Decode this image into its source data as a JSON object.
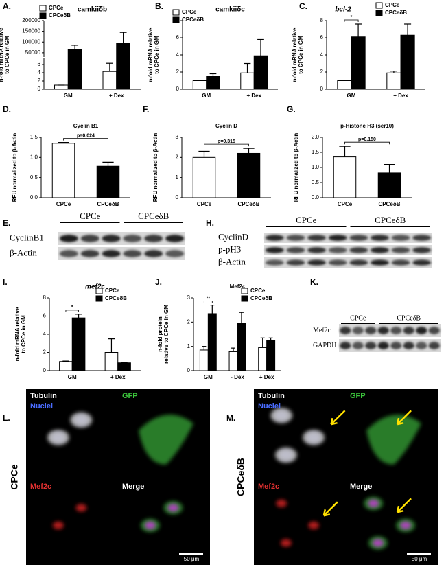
{
  "panel_labels": [
    "A.",
    "B.",
    "C.",
    "D.",
    "F.",
    "G.",
    "E.",
    "H.",
    "I.",
    "J.",
    "K.",
    "L.",
    "M."
  ],
  "chart_data": [
    {
      "type": "bar",
      "title": "camkiiδb",
      "ylabel": [
        "n-fold mRNA relative",
        "to CPCe in GM"
      ],
      "categories": [
        "GM",
        "+ Dex"
      ],
      "legend": "upper left",
      "series": [
        {
          "name": "CPCe",
          "color": "#ffffff",
          "values": [
            1,
            4.3
          ],
          "errors": [
            0,
            2
          ]
        },
        {
          "name": "CPCeδB",
          "color": "#000000",
          "values": [
            65000,
            95000
          ],
          "errors": [
            20000,
            50000
          ]
        }
      ],
      "ylim": [
        0,
        200000
      ],
      "ybreak": [
        7,
        40000
      ],
      "yticks": [
        0,
        2,
        4,
        6,
        50000,
        100000,
        150000,
        200000
      ]
    },
    {
      "type": "bar",
      "title": "camkiiδc",
      "ylabel": [
        "n-fold mRNA relative",
        "to CPCe in GM"
      ],
      "categories": [
        "GM",
        "+ Dex"
      ],
      "legend": "upper left",
      "series": [
        {
          "name": "CPCe",
          "color": "#ffffff",
          "values": [
            1,
            1.9
          ],
          "errors": [
            0.05,
            1.1
          ]
        },
        {
          "name": "CPCeδB",
          "color": "#000000",
          "values": [
            1.5,
            3.9
          ],
          "errors": [
            0.3,
            1.9
          ]
        }
      ],
      "ylim": [
        0,
        8
      ],
      "yticks": [
        0,
        2,
        4,
        6,
        8
      ]
    },
    {
      "type": "bar",
      "title": "bcl-2",
      "ylabel": [
        "n-fold mRNA relative",
        "to CPCe in GM"
      ],
      "categories": [
        "GM",
        "+ Dex"
      ],
      "legend": "upper right",
      "significance": "*",
      "series": [
        {
          "name": "CPCe",
          "color": "#ffffff",
          "values": [
            1,
            1.9
          ],
          "errors": [
            0.05,
            0.2
          ]
        },
        {
          "name": "CPCeδB",
          "color": "#000000",
          "values": [
            6.1,
            6.3
          ],
          "errors": [
            1.5,
            1.3
          ]
        }
      ],
      "ylim": [
        0,
        8
      ],
      "yticks": [
        0,
        2,
        4,
        6,
        8
      ]
    },
    {
      "type": "bar",
      "title": "Cyclin B1",
      "ylabel": [
        "RFU normalized to β-Actin"
      ],
      "categories": [
        "CPCe",
        "CPCeδB"
      ],
      "colors": [
        "#ffffff",
        "#000000"
      ],
      "pvalue": "p=0.024",
      "values": [
        1.35,
        0.78
      ],
      "errors": [
        0.02,
        0.1
      ],
      "ylim": [
        0,
        1.5
      ],
      "yticks": [
        {
          "value": 0,
          "label": "0.0"
        },
        0.5,
        {
          "value": 1,
          "label": "1.0"
        },
        1.5
      ]
    },
    {
      "type": "bar",
      "title": "Cyclin D",
      "ylabel": [
        "RFU normalized to β-Actin"
      ],
      "categories": [
        "CPCe",
        "CPCeδB"
      ],
      "colors": [
        "#ffffff",
        "#000000"
      ],
      "pvalue": "p=0.315",
      "values": [
        2.0,
        2.2
      ],
      "errors": [
        0.3,
        0.25
      ],
      "ylim": [
        0,
        3
      ],
      "yticks": [
        0,
        1,
        2,
        3
      ]
    },
    {
      "type": "bar",
      "title": "p-Histone H3 (ser10)",
      "ylabel": [
        "RFU normalized to β-Actin"
      ],
      "categories": [
        "CPCe",
        "CPCeδB"
      ],
      "colors": [
        "#ffffff",
        "#000000"
      ],
      "pvalue": "p=0.150",
      "values": [
        1.35,
        0.82
      ],
      "errors": [
        0.35,
        0.28
      ],
      "ylim": [
        0,
        2
      ],
      "yticks": [
        {
          "value": 0,
          "label": "0.0"
        },
        0.5,
        {
          "value": 1,
          "label": "1.0"
        },
        1.5,
        {
          "value": 2,
          "label": "2.0"
        }
      ]
    },
    {
      "type": "bar",
      "title": "mef2c",
      "ylabel": [
        "n-fold mRNA relative",
        "to CPCe in GM"
      ],
      "categories": [
        "GM",
        "+ Dex"
      ],
      "legend": "upper right",
      "significance": "*",
      "series": [
        {
          "name": "CPCe",
          "color": "#ffffff",
          "values": [
            1,
            2.0
          ],
          "errors": [
            0.05,
            1.5
          ]
        },
        {
          "name": "CPCeδB",
          "color": "#000000",
          "values": [
            5.8,
            0.85
          ],
          "errors": [
            0.4,
            0.05
          ]
        }
      ],
      "ylim": [
        0,
        8
      ],
      "yticks": [
        0,
        2,
        4,
        6,
        8
      ]
    },
    {
      "type": "bar",
      "title": "Mef2c",
      "ylabel": [
        "n-fold protein",
        "relative to CPCe in GM"
      ],
      "categories": [
        "GM",
        "- Dex",
        "+ Dex"
      ],
      "legend": "upper right",
      "significance": "**",
      "series": [
        {
          "name": "CPCe",
          "color": "#ffffff",
          "values": [
            0.85,
            0.78,
            0.95
          ],
          "errors": [
            0.15,
            0.15,
            0.4
          ]
        },
        {
          "name": "CPCeδB",
          "color": "#000000",
          "values": [
            2.35,
            1.95,
            1.25
          ],
          "errors": [
            0.35,
            0.45,
            0.1
          ]
        }
      ],
      "ylim": [
        0,
        3
      ],
      "yticks": [
        0,
        1,
        2,
        3
      ]
    }
  ],
  "blots": [
    {
      "groups": [
        "CPCe",
        "CPCeδB"
      ],
      "rows": [
        "CyclinB1",
        "β-Actin"
      ]
    },
    {
      "groups": [
        "CPCe",
        "CPCeδB"
      ],
      "rows": [
        "CyclinD",
        "p-pH3",
        "β-Actin"
      ]
    },
    {
      "groups": [
        "CPCe",
        "CPCeδB"
      ],
      "rows": [
        "Mef2c",
        "GAPDH"
      ]
    }
  ],
  "images": [
    {
      "condition": "CPCe",
      "channels": [
        "Tubulin",
        "Nuclei",
        "GFP",
        "Mef2c",
        "Merge"
      ],
      "scale_bar": "50 μm"
    },
    {
      "condition": "CPCeδB",
      "channels": [
        "Tubulin",
        "Nuclei",
        "GFP",
        "Mef2c",
        "Merge"
      ],
      "scale_bar": "50 μm"
    }
  ]
}
